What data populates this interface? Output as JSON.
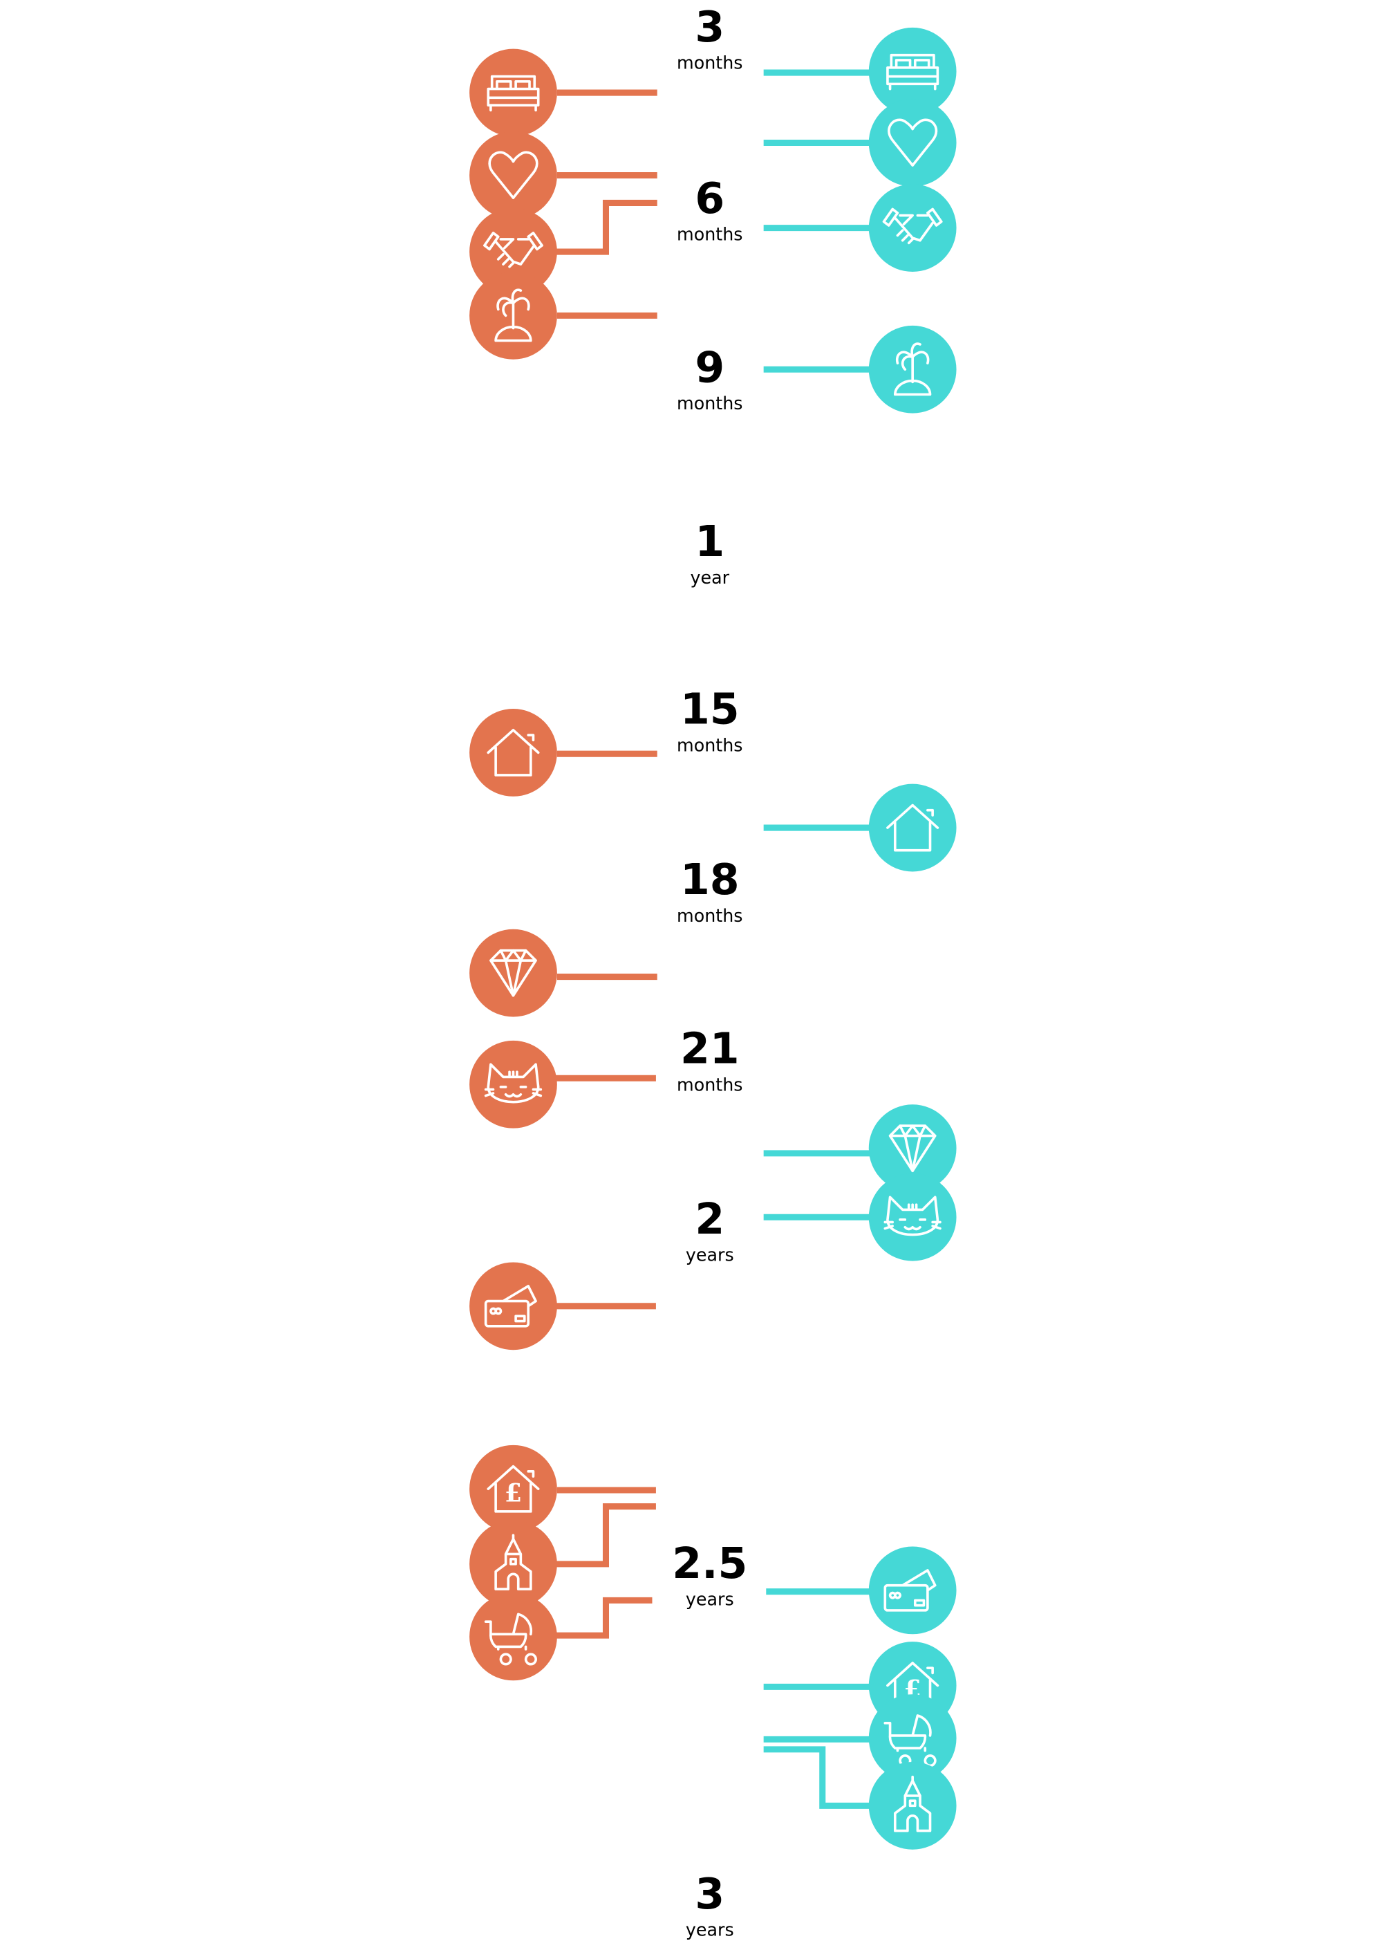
{
  "colors": {
    "left": "#E3744E",
    "right": "#45D8D6",
    "text": "#000000"
  },
  "timeline": [
    {
      "value": "3",
      "unit": "months"
    },
    {
      "value": "6",
      "unit": "months"
    },
    {
      "value": "9",
      "unit": "months"
    },
    {
      "value": "1",
      "unit": "year"
    },
    {
      "value": "15",
      "unit": "months"
    },
    {
      "value": "18",
      "unit": "months"
    },
    {
      "value": "21",
      "unit": "months"
    },
    {
      "value": "2",
      "unit": "years"
    },
    {
      "value": "2.5",
      "unit": "years"
    },
    {
      "value": "3",
      "unit": "years"
    }
  ],
  "left_events": [
    {
      "icon": "bed"
    },
    {
      "icon": "heart"
    },
    {
      "icon": "handshake"
    },
    {
      "icon": "palm-island"
    },
    {
      "icon": "house"
    },
    {
      "icon": "diamond"
    },
    {
      "icon": "cat"
    },
    {
      "icon": "credit-card"
    },
    {
      "icon": "house-pound"
    },
    {
      "icon": "church"
    },
    {
      "icon": "pram"
    }
  ],
  "right_events": [
    {
      "icon": "bed"
    },
    {
      "icon": "heart"
    },
    {
      "icon": "handshake"
    },
    {
      "icon": "palm-island"
    },
    {
      "icon": "house"
    },
    {
      "icon": "diamond"
    },
    {
      "icon": "cat"
    },
    {
      "icon": "credit-card"
    },
    {
      "icon": "house-pound"
    },
    {
      "icon": "pram"
    },
    {
      "icon": "church"
    }
  ],
  "pound_symbol": "£"
}
